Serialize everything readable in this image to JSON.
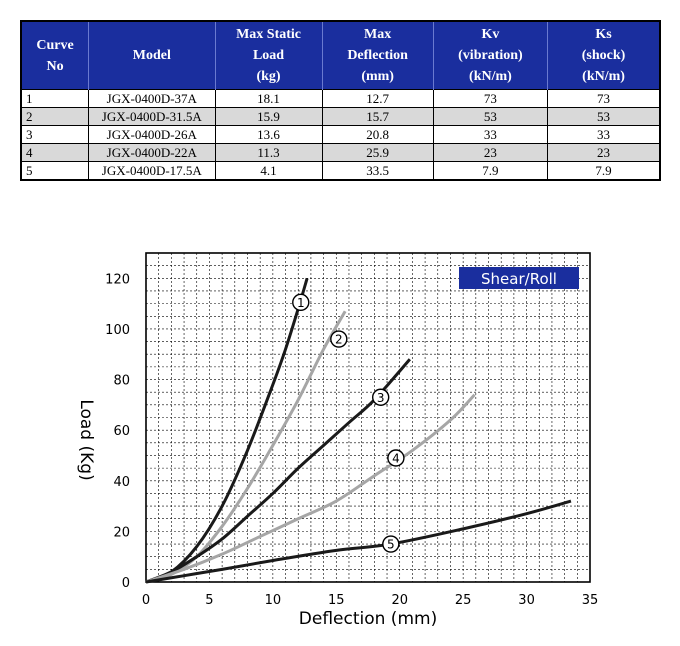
{
  "table": {
    "headers": [
      [
        "Curve",
        "No"
      ],
      [
        "Model"
      ],
      [
        "Max Static",
        "Load",
        "(kg)"
      ],
      [
        "Max",
        "Deflection",
        "(mm)"
      ],
      [
        "Kv",
        "(vibration)",
        "(kN/m)"
      ],
      [
        "Ks",
        "(shock)",
        "(kN/m)"
      ]
    ],
    "rows": [
      [
        "1",
        "JGX-0400D-37A",
        "18.1",
        "12.7",
        "73",
        "73"
      ],
      [
        "2",
        "JGX-0400D-31.5A",
        "15.9",
        "15.7",
        "53",
        "53"
      ],
      [
        "3",
        "JGX-0400D-26A",
        "13.6",
        "20.8",
        "33",
        "33"
      ],
      [
        "4",
        "JGX-0400D-22A",
        "11.3",
        "25.9",
        "23",
        "23"
      ],
      [
        "5",
        "JGX-0400D-17.5A",
        "4.1",
        "33.5",
        "7.9",
        "7.9"
      ]
    ]
  },
  "chart_data": {
    "type": "line",
    "legend_box": "Shear/Roll",
    "xlabel": "Deflection (mm)",
    "ylabel": "Load (Kg)",
    "xlim": [
      0,
      35
    ],
    "ylim": [
      0,
      130
    ],
    "xticks": [
      0,
      5,
      10,
      15,
      20,
      25,
      30,
      35
    ],
    "yticks": [
      0,
      20,
      40,
      60,
      80,
      100,
      120
    ],
    "grid": true,
    "series": [
      {
        "name": "1",
        "color": "#1a1a1a",
        "marker_at": [
          12.2,
          110.5
        ],
        "points": [
          [
            0,
            0
          ],
          [
            2,
            4
          ],
          [
            4,
            14
          ],
          [
            6,
            30
          ],
          [
            8,
            52
          ],
          [
            10,
            78
          ],
          [
            11,
            92
          ],
          [
            12,
            108
          ],
          [
            12.7,
            120
          ]
        ]
      },
      {
        "name": "2",
        "color": "#a6a6a6",
        "marker_at": [
          15.2,
          96
        ],
        "points": [
          [
            0,
            0
          ],
          [
            2,
            3
          ],
          [
            4,
            10
          ],
          [
            6,
            22
          ],
          [
            8,
            37
          ],
          [
            10,
            54
          ],
          [
            12,
            72
          ],
          [
            14,
            92
          ],
          [
            15.7,
            107
          ]
        ]
      },
      {
        "name": "3",
        "color": "#1a1a1a",
        "marker_at": [
          18.5,
          73
        ],
        "points": [
          [
            0,
            0
          ],
          [
            2,
            4
          ],
          [
            4,
            10
          ],
          [
            6,
            17
          ],
          [
            8,
            26
          ],
          [
            10,
            35
          ],
          [
            12,
            45
          ],
          [
            14,
            54
          ],
          [
            16,
            63
          ],
          [
            18,
            72
          ],
          [
            20.8,
            88
          ]
        ]
      },
      {
        "name": "4",
        "color": "#a6a6a6",
        "marker_at": [
          19.7,
          49
        ],
        "points": [
          [
            0,
            0
          ],
          [
            3,
            5
          ],
          [
            6,
            11
          ],
          [
            9,
            18
          ],
          [
            12,
            25
          ],
          [
            15,
            32
          ],
          [
            18,
            42
          ],
          [
            21,
            52
          ],
          [
            24,
            64
          ],
          [
            25.9,
            74
          ]
        ]
      },
      {
        "name": "5",
        "color": "#1a1a1a",
        "marker_at": [
          19.3,
          15
        ],
        "points": [
          [
            0,
            0
          ],
          [
            3,
            2.5
          ],
          [
            6,
            5
          ],
          [
            10,
            8.5
          ],
          [
            15,
            12.5
          ],
          [
            19.3,
            15
          ],
          [
            25,
            21
          ],
          [
            30,
            27
          ],
          [
            33.5,
            32
          ]
        ]
      }
    ]
  }
}
